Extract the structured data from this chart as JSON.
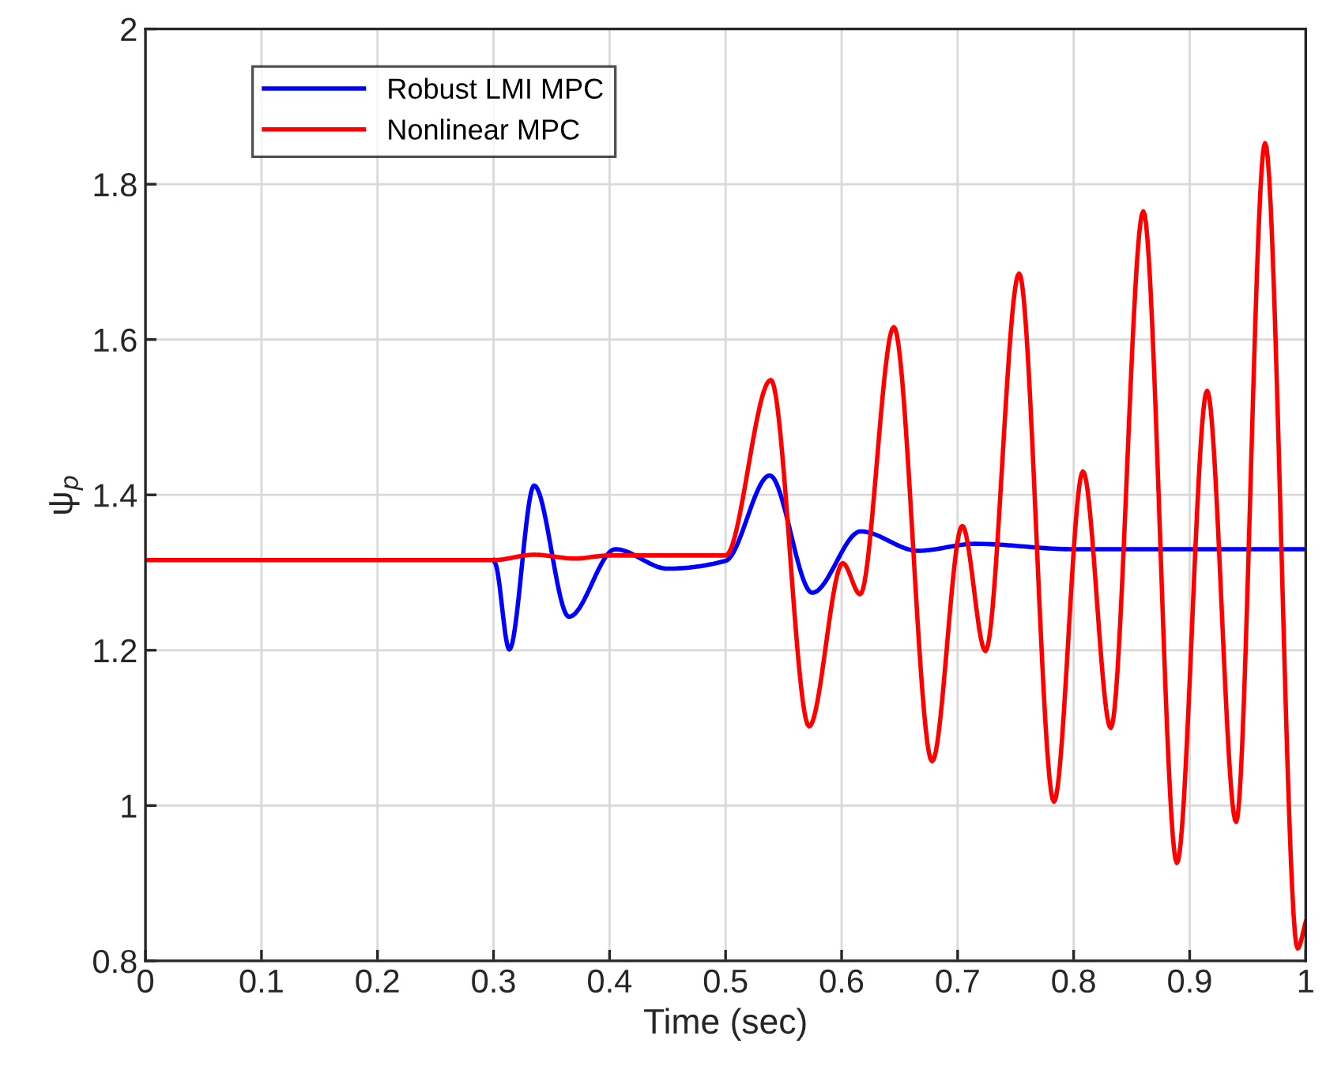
{
  "chart_data": {
    "type": "line",
    "xlabel": "Time (sec)",
    "ylabel": "ψ$_{p}$",
    "xlim": [
      0,
      1
    ],
    "ylim": [
      0.8,
      2
    ],
    "xticks": [
      0,
      0.1,
      0.2,
      0.3,
      0.4,
      0.5,
      0.6,
      0.7,
      0.8,
      0.9,
      1
    ],
    "yticks": [
      0.8,
      1,
      1.2,
      1.4,
      1.6,
      1.8,
      2
    ],
    "grid": true,
    "legend": "top left",
    "marker": "none",
    "line_style": "solid",
    "series": [
      {
        "name": "Robust LMI MPC",
        "color": "#0000ff",
        "x": [
          0.3,
          0.302,
          0.3136,
          0.335,
          0.365,
          0.405,
          0.45,
          0.5,
          0.538,
          0.5747,
          0.6164,
          0.6658,
          0.715,
          0.8,
          0.9,
          1
        ],
        "values": [
          1.316,
          1.31,
          1.201,
          1.412,
          1.243,
          1.33,
          1.305,
          1.315,
          1.425,
          1.274,
          1.353,
          1.328,
          1.337,
          1.33,
          1.33,
          1.33
        ]
      },
      {
        "name": "Nonlinear MPC",
        "color": "#ff0000",
        "x": [
          0,
          0.1,
          0.2,
          0.3,
          0.335,
          0.37,
          0.4,
          0.5,
          0.539,
          0.572,
          0.601,
          0.616,
          0.645,
          0.678,
          0.704,
          0.724,
          0.753,
          0.783,
          0.808,
          0.832,
          0.86,
          0.889,
          0.915,
          0.94,
          0.965,
          0.993,
          1
        ],
        "values": [
          1.316,
          1.316,
          1.316,
          1.316,
          1.323,
          1.318,
          1.322,
          1.322,
          1.548,
          1.102,
          1.312,
          1.272,
          1.616,
          1.057,
          1.36,
          1.199,
          1.685,
          1.005,
          1.43,
          1.1,
          1.765,
          0.926,
          1.534,
          0.979,
          1.853,
          0.816,
          0.85
        ]
      }
    ]
  }
}
